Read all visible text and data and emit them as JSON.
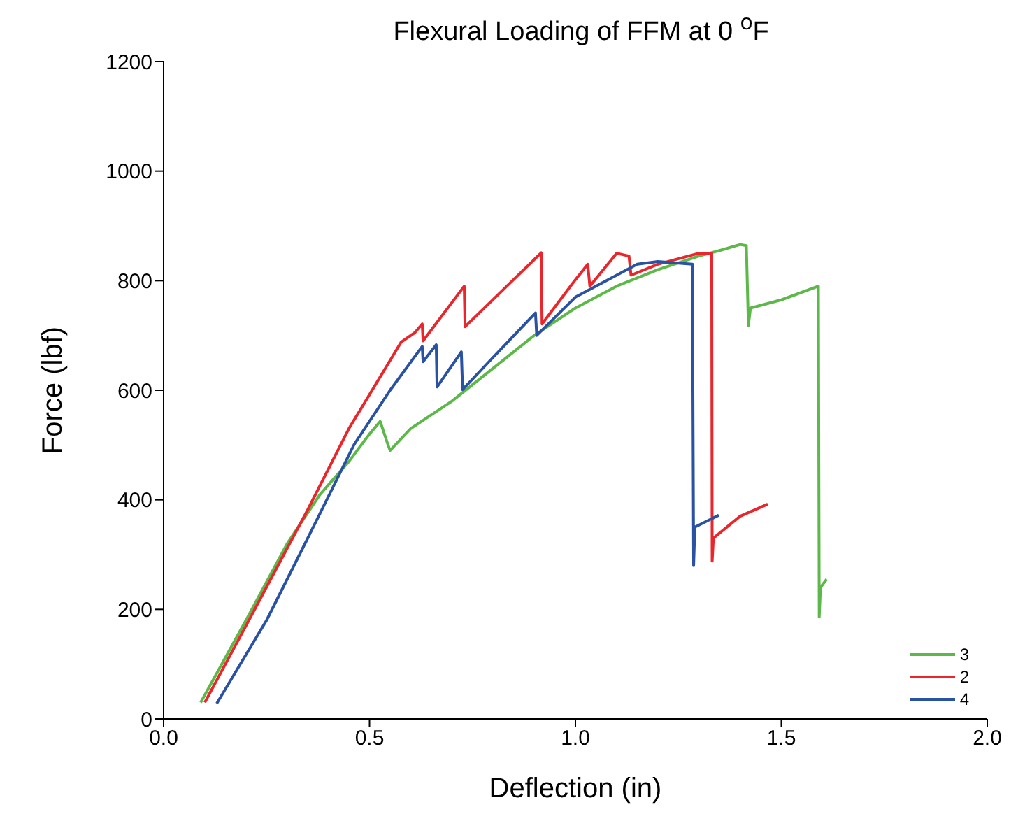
{
  "chart_data": {
    "type": "line",
    "title": "Flexural Loading of FFM at 0 $^{o}$F",
    "xlabel": "Deflection (in)",
    "ylabel": "Force (lbf)",
    "xlim": [
      0,
      2
    ],
    "ylim": [
      0,
      1200
    ],
    "xticks": [
      {
        "value": 0,
        "label": "0.0"
      },
      {
        "value": 0.5,
        "label": "0.5"
      },
      {
        "value": 1,
        "label": "1.0"
      },
      {
        "value": 1.5,
        "label": "1.5"
      },
      {
        "value": 2,
        "label": "2.0"
      }
    ],
    "yticks": [
      0,
      200,
      400,
      600,
      800,
      1000,
      1200
    ],
    "legend": "bottom right",
    "series": [
      {
        "name": "3",
        "color": "#5cb848",
        "x": [
          0.09,
          0.2,
          0.3,
          0.38,
          0.45,
          0.5,
          0.526,
          0.545,
          0.55,
          0.6,
          0.7,
          0.8,
          0.9,
          1.0,
          1.1,
          1.2,
          1.3,
          1.35,
          1.4,
          1.415,
          1.42,
          1.425,
          1.5,
          1.59,
          1.592,
          1.595,
          1.61
        ],
        "values": [
          30,
          180,
          320,
          410,
          470,
          520,
          543,
          500,
          490,
          530,
          580,
          640,
          700,
          750,
          790,
          820,
          845,
          855,
          866,
          864,
          718,
          750,
          765,
          790,
          186,
          240,
          255
        ]
      },
      {
        "name": "2",
        "color": "#e8262b",
        "x": [
          0.1,
          0.2,
          0.35,
          0.45,
          0.577,
          0.61,
          0.628,
          0.63,
          0.73,
          0.732,
          0.917,
          0.919,
          0.995,
          1.03,
          1.035,
          1.1,
          1.13,
          1.135,
          1.2,
          1.3,
          1.331,
          1.332,
          1.335,
          1.4,
          1.467
        ],
        "values": [
          30,
          170,
          382,
          530,
          688,
          705,
          721,
          690,
          790,
          716,
          851,
          721,
          797,
          830,
          790,
          850,
          845,
          810,
          830,
          850,
          850,
          288,
          330,
          370,
          392
        ]
      },
      {
        "name": "4",
        "color": "#2a52a3",
        "x": [
          0.129,
          0.25,
          0.35,
          0.462,
          0.55,
          0.628,
          0.63,
          0.662,
          0.664,
          0.723,
          0.726,
          0.8,
          0.903,
          0.906,
          1.0,
          1.1,
          1.15,
          1.2,
          1.284,
          1.287,
          1.29,
          1.348
        ],
        "values": [
          28,
          180,
          330,
          500,
          600,
          680,
          652,
          683,
          606,
          670,
          601,
          660,
          741,
          700,
          770,
          810,
          830,
          835,
          830,
          280,
          350,
          372
        ]
      }
    ]
  }
}
